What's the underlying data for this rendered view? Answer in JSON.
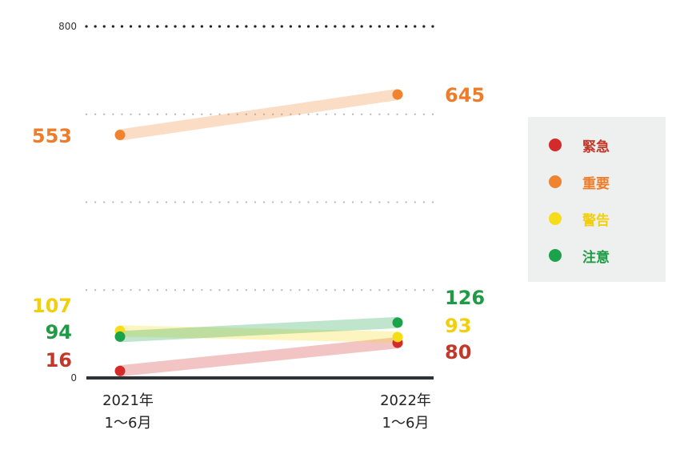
{
  "chart_data": {
    "type": "line",
    "categories": [
      "2021年\n1〜6月",
      "2022年\n1〜6月"
    ],
    "ylim": [
      0,
      800
    ],
    "y_tick_labels": [
      "0",
      "800"
    ],
    "grid": "dotted horizontal",
    "legend_position": "right",
    "series": [
      {
        "name": "緊急",
        "values": [
          16,
          80
        ],
        "color": "#d42a2a",
        "labelColor": "#c0392b"
      },
      {
        "name": "重要",
        "values": [
          553,
          645
        ],
        "color": "#f08330",
        "labelColor": "#ee7d2b"
      },
      {
        "name": "警告",
        "values": [
          107,
          93
        ],
        "color": "#f7dc1a",
        "labelColor": "#f2cf0c"
      },
      {
        "name": "注意",
        "values": [
          94,
          126
        ],
        "color": "#1aa34a",
        "labelColor": "#1f9a45"
      }
    ]
  }
}
